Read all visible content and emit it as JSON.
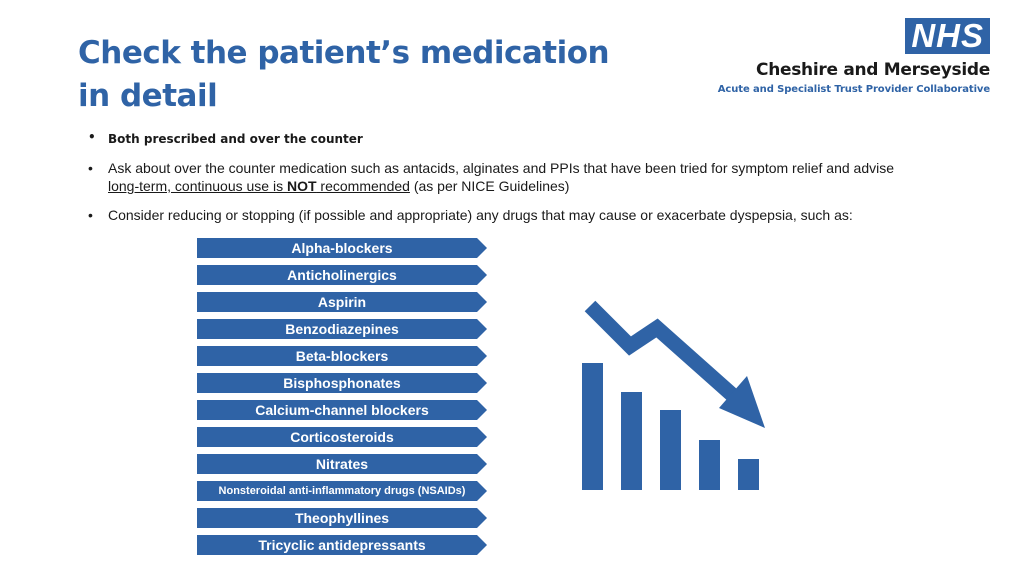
{
  "title": {
    "line1": "Check the patient’s medication",
    "line2": "in detail"
  },
  "logo": {
    "nhs": "NHS",
    "org_name": "Cheshire and Merseyside",
    "org_sub": "Acute and Specialist Trust Provider Collaborative",
    "brand_color": "#2f63a6"
  },
  "bullets": {
    "b1": "Both prescribed and over the counter",
    "b2_part1": "Ask about over the counter medication such as antacids, alginates and PPIs that have been tried for symptom relief and advise",
    "b2_ul1": "long-term, continuous use is ",
    "b2_ul_bold": "NOT",
    "b2_ul2": " recommended",
    "b2_tail": " (as per NICE Guidelines)",
    "b3": "Consider reducing or stopping (if possible and appropriate) any drugs that may cause or exacerbate dyspepsia, such as:"
  },
  "drugs": [
    "Alpha-blockers",
    "Anticholinergics",
    "Aspirin",
    "Benzodiazepines",
    "Beta-blockers",
    "Bisphosphonates",
    "Calcium-channel blockers",
    "Corticosteroids",
    "Nitrates",
    "Nonsteroidal anti-inflammatory drugs (NSAIDs)",
    "Theophyllines",
    "Tricyclic antidepressants"
  ],
  "chart_icon": {
    "icon": "declining-bar-chart-icon",
    "color": "#2f63a6"
  }
}
